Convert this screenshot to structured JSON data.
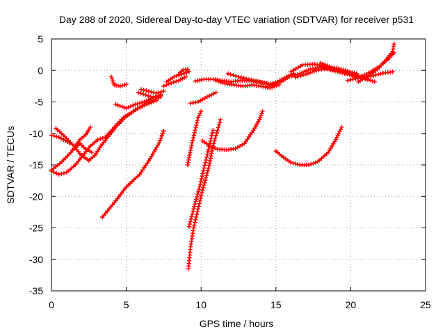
{
  "chart_data": {
    "type": "scatter",
    "title": "Day 288 of 2020, Sidereal Day-to-day VTEC variation (SDTVAR) for receiver p531",
    "xlabel": "GPS time / hours",
    "ylabel": "SDTVAR / TECUs",
    "xlim": [
      0,
      25
    ],
    "ylim": [
      -35,
      5
    ],
    "xticks": [
      0,
      5,
      10,
      15,
      20,
      25
    ],
    "yticks": [
      -35,
      -30,
      -25,
      -20,
      -15,
      -10,
      -5,
      0,
      5
    ],
    "xtick_labels": [
      "0",
      "5",
      "10",
      "15",
      "20",
      "25"
    ],
    "ytick_labels": [
      "-35",
      "-30",
      "-25",
      "-20",
      "-15",
      "-10",
      "-5",
      "0",
      "5"
    ],
    "grid": true,
    "marker": "plus",
    "color": "#ff0000",
    "series": [
      {
        "points": [
          [
            0.0,
            -16.0
          ],
          [
            0.5,
            -16.5
          ],
          [
            1.0,
            -16.2
          ],
          [
            1.6,
            -15.0
          ],
          [
            2.1,
            -13.5
          ],
          [
            2.6,
            -12.0
          ],
          [
            3.1,
            -11.0
          ],
          [
            3.6,
            -10.6
          ],
          [
            4.2,
            -9.0
          ],
          [
            4.8,
            -7.5
          ],
          [
            5.5,
            -6.5
          ],
          [
            6.2,
            -5.5
          ],
          [
            7.0,
            -4.8
          ]
        ]
      },
      {
        "points": [
          [
            0.0,
            -15.8
          ],
          [
            0.7,
            -14.5
          ],
          [
            1.3,
            -13.0
          ],
          [
            1.9,
            -11.0
          ],
          [
            2.3,
            -10.2
          ],
          [
            2.6,
            -9.0
          ]
        ]
      },
      {
        "points": [
          [
            0.0,
            -10.3
          ],
          [
            0.5,
            -10.6
          ],
          [
            0.8,
            -11.0
          ],
          [
            1.2,
            -11.5
          ]
        ]
      },
      {
        "points": [
          [
            0.3,
            -9.2
          ],
          [
            0.9,
            -10.5
          ],
          [
            1.5,
            -12.0
          ],
          [
            2.0,
            -13.5
          ],
          [
            2.5,
            -14.3
          ],
          [
            2.9,
            -13.5
          ],
          [
            3.3,
            -12.0
          ],
          [
            3.8,
            -10.5
          ],
          [
            4.3,
            -9.0
          ],
          [
            4.9,
            -7.5
          ],
          [
            5.6,
            -6.2
          ],
          [
            6.4,
            -5.2
          ],
          [
            7.3,
            -4.2
          ]
        ]
      },
      {
        "points": [
          [
            1.5,
            -12.5
          ],
          [
            1.9,
            -11.6
          ],
          [
            2.3,
            -12.5
          ],
          [
            2.7,
            -13.0
          ]
        ]
      },
      {
        "points": [
          [
            3.4,
            -23.3
          ],
          [
            4.2,
            -21.0
          ],
          [
            5.0,
            -18.5
          ],
          [
            5.9,
            -16.5
          ],
          [
            6.6,
            -14.0
          ],
          [
            7.2,
            -11.5
          ],
          [
            7.5,
            -9.6
          ]
        ]
      },
      {
        "points": [
          [
            4.0,
            -1.0
          ],
          [
            4.2,
            -2.3
          ],
          [
            4.6,
            -2.5
          ],
          [
            5.0,
            -2.2
          ]
        ]
      },
      {
        "points": [
          [
            4.3,
            -5.4
          ],
          [
            5.0,
            -6.0
          ],
          [
            5.6,
            -5.4
          ],
          [
            6.2,
            -5.0
          ],
          [
            6.8,
            -4.3
          ],
          [
            7.3,
            -3.8
          ]
        ]
      },
      {
        "points": [
          [
            5.8,
            -3.5
          ],
          [
            6.3,
            -3.9
          ],
          [
            6.8,
            -4.3
          ],
          [
            7.3,
            -4.0
          ]
        ]
      },
      {
        "points": [
          [
            6.0,
            -3.0
          ],
          [
            6.5,
            -3.3
          ],
          [
            7.0,
            -3.6
          ],
          [
            7.5,
            -3.3
          ]
        ]
      },
      {
        "points": [
          [
            7.5,
            -2.5
          ],
          [
            8.0,
            -2.0
          ],
          [
            8.5,
            -1.6
          ],
          [
            9.0,
            -1.0
          ]
        ]
      },
      {
        "points": [
          [
            7.7,
            -1.8
          ],
          [
            8.2,
            -1.0
          ],
          [
            8.7,
            -0.6
          ],
          [
            9.2,
            -0.2
          ]
        ]
      },
      {
        "points": [
          [
            8.5,
            -0.6
          ],
          [
            8.8,
            0.1
          ],
          [
            9.1,
            0.2
          ]
        ]
      },
      {
        "points": [
          [
            9.1,
            -15.0
          ],
          [
            9.4,
            -11.5
          ],
          [
            9.8,
            -7.5
          ],
          [
            10.0,
            -6.5
          ]
        ]
      },
      {
        "points": [
          [
            9.15,
            -31.5
          ],
          [
            9.3,
            -28.0
          ],
          [
            9.5,
            -25.0
          ],
          [
            9.8,
            -22.0
          ],
          [
            10.1,
            -19.0
          ],
          [
            10.5,
            -15.5
          ],
          [
            10.8,
            -12.0
          ],
          [
            11.1,
            -9.5
          ],
          [
            11.3,
            -7.8
          ]
        ]
      },
      {
        "points": [
          [
            9.2,
            -24.8
          ],
          [
            9.5,
            -22.0
          ],
          [
            9.9,
            -18.5
          ],
          [
            10.2,
            -15.5
          ],
          [
            10.5,
            -12.5
          ],
          [
            10.8,
            -9.5
          ]
        ]
      },
      {
        "points": [
          [
            9.3,
            -5.2
          ],
          [
            9.8,
            -5.0
          ],
          [
            10.4,
            -4.2
          ],
          [
            11.0,
            -3.5
          ]
        ]
      },
      {
        "points": [
          [
            9.6,
            -1.7
          ],
          [
            10.2,
            -1.4
          ],
          [
            10.8,
            -1.4
          ],
          [
            11.4,
            -1.6
          ],
          [
            12.0,
            -1.8
          ],
          [
            12.6,
            -1.6
          ],
          [
            13.2,
            -1.6
          ],
          [
            13.8,
            -1.8
          ],
          [
            14.4,
            -2.0
          ]
        ]
      },
      {
        "points": [
          [
            10.1,
            -11.2
          ],
          [
            10.6,
            -12.0
          ],
          [
            11.1,
            -12.5
          ],
          [
            11.7,
            -12.6
          ],
          [
            12.3,
            -12.4
          ],
          [
            12.9,
            -11.6
          ],
          [
            13.5,
            -9.5
          ],
          [
            13.9,
            -7.8
          ],
          [
            14.1,
            -6.5
          ]
        ]
      },
      {
        "points": [
          [
            11.0,
            -1.6
          ],
          [
            11.6,
            -2.1
          ],
          [
            12.2,
            -2.3
          ],
          [
            12.8,
            -2.5
          ],
          [
            13.4,
            -2.3
          ],
          [
            14.0,
            -2.5
          ],
          [
            14.6,
            -2.8
          ],
          [
            15.2,
            -2.3
          ]
        ]
      },
      {
        "points": [
          [
            11.8,
            -0.5
          ],
          [
            12.5,
            -1.0
          ],
          [
            13.2,
            -1.4
          ],
          [
            13.9,
            -1.8
          ],
          [
            14.5,
            -2.2
          ],
          [
            15.1,
            -1.8
          ],
          [
            15.7,
            -1.0
          ],
          [
            16.2,
            -0.5
          ]
        ]
      },
      {
        "points": [
          [
            14.5,
            -2.5
          ],
          [
            15.2,
            -2.0
          ],
          [
            15.9,
            -1.0
          ],
          [
            16.6,
            -0.5
          ],
          [
            17.3,
            0.2
          ],
          [
            18.0,
            0.5
          ],
          [
            18.8,
            0.0
          ],
          [
            19.6,
            -0.5
          ],
          [
            20.4,
            -1.0
          ],
          [
            21.2,
            -1.0
          ],
          [
            22.0,
            -0.5
          ],
          [
            22.8,
            -0.2
          ]
        ]
      },
      {
        "points": [
          [
            15.0,
            -12.8
          ],
          [
            15.5,
            -13.8
          ],
          [
            16.0,
            -14.6
          ],
          [
            16.6,
            -15.0
          ],
          [
            17.2,
            -15.0
          ],
          [
            17.8,
            -14.5
          ],
          [
            18.5,
            -13.0
          ],
          [
            19.0,
            -11.0
          ],
          [
            19.4,
            -9.0
          ]
        ]
      },
      {
        "points": [
          [
            16.0,
            -0.2
          ],
          [
            16.8,
            0.9
          ],
          [
            17.6,
            1.0
          ],
          [
            18.4,
            0.5
          ],
          [
            19.0,
            0.1
          ],
          [
            19.6,
            -0.3
          ],
          [
            20.3,
            -0.8
          ],
          [
            21.0,
            -1.3
          ],
          [
            21.6,
            -1.8
          ]
        ]
      },
      {
        "points": [
          [
            16.3,
            -1.1
          ],
          [
            17.0,
            -0.6
          ],
          [
            17.7,
            0.0
          ],
          [
            18.4,
            0.3
          ],
          [
            19.1,
            0.0
          ],
          [
            19.8,
            -0.4
          ],
          [
            20.5,
            -1.0
          ],
          [
            21.1,
            -1.4
          ]
        ]
      },
      {
        "points": [
          [
            19.8,
            -1.6
          ],
          [
            20.5,
            -1.2
          ],
          [
            21.2,
            -0.4
          ],
          [
            21.9,
            0.6
          ],
          [
            22.5,
            1.8
          ],
          [
            22.9,
            2.8
          ]
        ]
      },
      {
        "points": [
          [
            20.5,
            -1.8
          ],
          [
            21.2,
            -0.8
          ],
          [
            21.8,
            0.2
          ],
          [
            22.3,
            1.5
          ],
          [
            22.8,
            3.0
          ],
          [
            22.9,
            4.2
          ]
        ]
      },
      {
        "points": [
          [
            18.0,
            1.2
          ],
          [
            18.6,
            0.6
          ],
          [
            19.2,
            0.3
          ],
          [
            19.8,
            -0.1
          ],
          [
            20.4,
            -0.5
          ]
        ]
      }
    ]
  }
}
